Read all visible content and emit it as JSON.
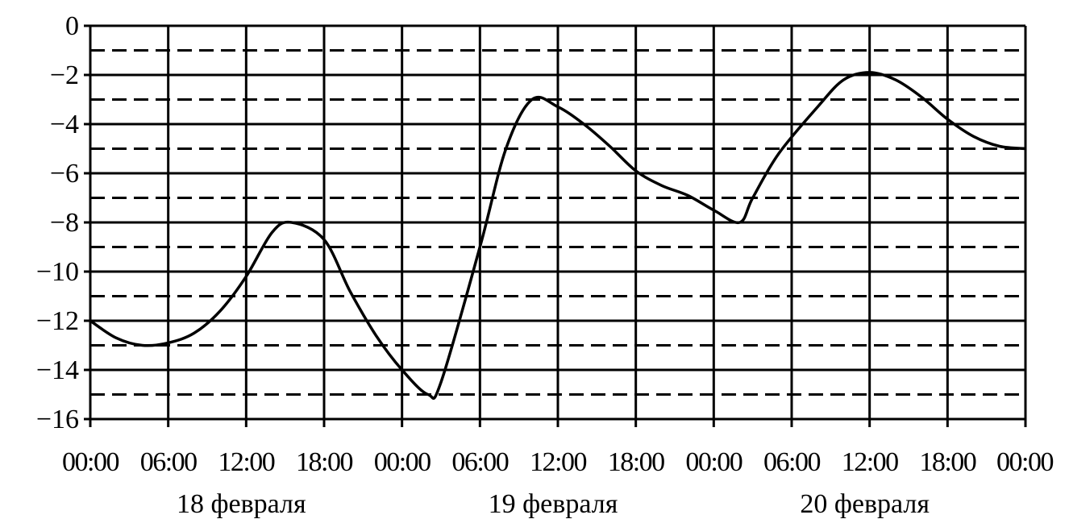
{
  "chart_data": {
    "type": "line",
    "title": "",
    "xlabel": "",
    "ylabel": "",
    "ylim": [
      -16,
      0
    ],
    "y_ticks": [
      0,
      -2,
      -4,
      -6,
      -8,
      -10,
      -12,
      -14,
      -16
    ],
    "y_tick_labels": [
      "0",
      "−2",
      "−4",
      "−6",
      "−8",
      "−10",
      "−12",
      "−14",
      "−16"
    ],
    "x_range_hours": [
      0,
      72
    ],
    "x_tick_labels": [
      "00:00",
      "06:00",
      "12:00",
      "18:00",
      "00:00",
      "06:00",
      "12:00",
      "18:00",
      "00:00",
      "06:00",
      "12:00",
      "18:00",
      "00:00"
    ],
    "date_labels": [
      "18 февраля",
      "19 февраля",
      "20 февраля"
    ],
    "grid": "solid at even values and vertical ticks, dashed at odd values",
    "series": [
      {
        "x": [
          0,
          2,
          4,
          6,
          8,
          10,
          12,
          14,
          15.5,
          18,
          20,
          22,
          24,
          26,
          27,
          30,
          32,
          34,
          36,
          38,
          40,
          42,
          44,
          46,
          48,
          50,
          51,
          53,
          56,
          58,
          60,
          62,
          64,
          66,
          68,
          70,
          72
        ],
        "y": [
          -12,
          -12.7,
          -13,
          -12.9,
          -12.5,
          -11.6,
          -10.2,
          -8.4,
          -8,
          -8.7,
          -10.8,
          -12.6,
          -14,
          -15,
          -14.5,
          -9,
          -5,
          -3,
          -3.3,
          -4,
          -4.9,
          -5.9,
          -6.5,
          -6.9,
          -7.5,
          -8,
          -7,
          -5.2,
          -3.3,
          -2.2,
          -1.9,
          -2.2,
          -2.9,
          -3.8,
          -4.5,
          -4.9,
          -5
        ]
      }
    ]
  }
}
